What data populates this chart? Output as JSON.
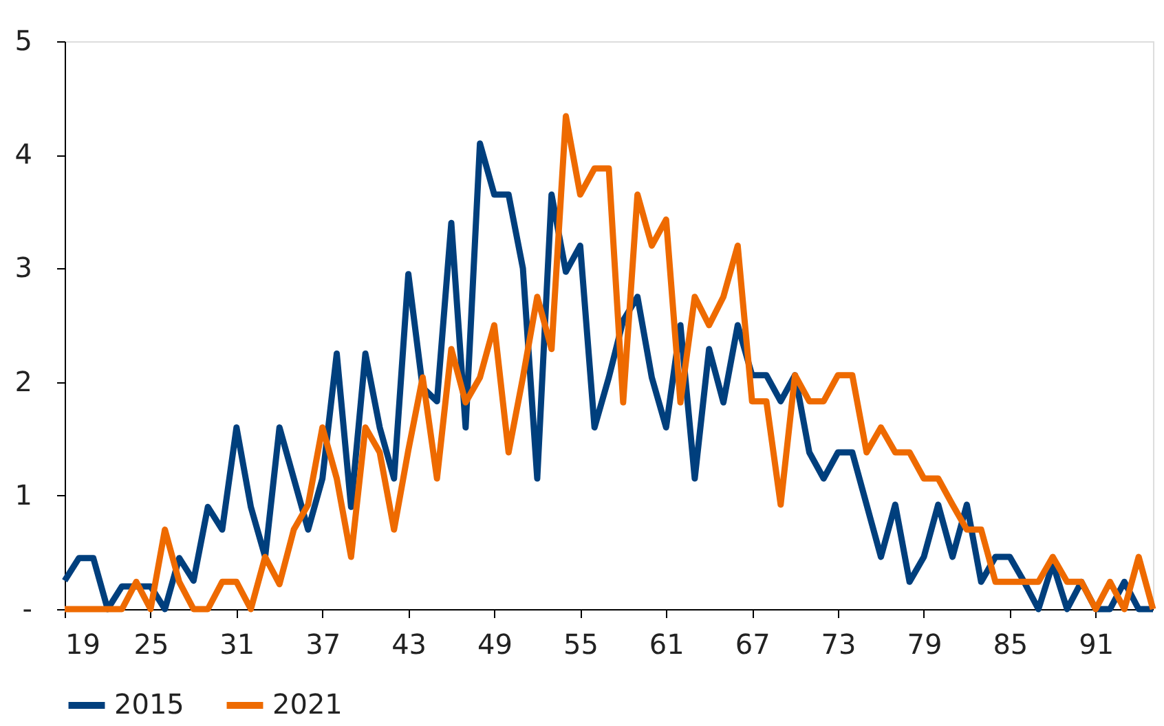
{
  "chart_data": {
    "type": "line",
    "x": [
      19,
      20,
      21,
      22,
      23,
      24,
      25,
      26,
      27,
      28,
      29,
      30,
      31,
      32,
      33,
      34,
      35,
      36,
      37,
      38,
      39,
      40,
      41,
      42,
      43,
      44,
      45,
      46,
      47,
      48,
      49,
      50,
      51,
      52,
      53,
      54,
      55,
      56,
      57,
      58,
      59,
      60,
      61,
      62,
      63,
      64,
      65,
      66,
      67,
      68,
      69,
      70,
      71,
      72,
      73,
      74,
      75,
      76,
      77,
      78,
      79,
      80,
      81,
      82,
      83,
      84,
      85,
      86,
      87,
      88,
      89,
      90,
      91,
      92,
      93,
      94,
      95
    ],
    "series": [
      {
        "name": "2015",
        "color": "#003f7d",
        "values": [
          0.25,
          0.45,
          0.45,
          0,
          0.2,
          0.2,
          0.2,
          0,
          0.45,
          0.25,
          0.9,
          0.7,
          1.6,
          0.9,
          0.46,
          1.6,
          1.15,
          0.7,
          1.15,
          2.25,
          0.9,
          2.25,
          1.6,
          1.15,
          2.95,
          1.95,
          1.83,
          3.4,
          1.6,
          4.1,
          3.65,
          3.65,
          3.0,
          1.15,
          3.65,
          2.97,
          3.2,
          1.6,
          2.04,
          2.54,
          2.75,
          2.04,
          1.6,
          2.5,
          1.15,
          2.29,
          1.82,
          2.5,
          2.06,
          2.06,
          1.83,
          2.06,
          1.38,
          1.15,
          1.38,
          1.38,
          0.92,
          0.46,
          0.92,
          0.24,
          0.46,
          0.92,
          0.46,
          0.92,
          0.24,
          0.46,
          0.46,
          0.24,
          0,
          0.4,
          0,
          0.24,
          0,
          0,
          0.24,
          0,
          0
        ]
      },
      {
        "name": "2021",
        "color": "#ee6a00",
        "values": [
          0,
          0,
          0,
          0,
          0,
          0.24,
          0,
          0.7,
          0.24,
          0,
          0,
          0.24,
          0.24,
          0,
          0.46,
          0.22,
          0.7,
          0.92,
          1.6,
          1.15,
          0.46,
          1.6,
          1.38,
          0.7,
          1.4,
          2.04,
          1.15,
          2.29,
          1.82,
          2.04,
          2.5,
          1.38,
          2.04,
          2.75,
          2.29,
          4.34,
          3.65,
          3.88,
          3.88,
          1.82,
          3.65,
          3.2,
          3.43,
          1.82,
          2.75,
          2.5,
          2.75,
          3.2,
          1.83,
          1.83,
          0.92,
          2.06,
          1.83,
          1.83,
          2.06,
          2.06,
          1.38,
          1.6,
          1.38,
          1.38,
          1.15,
          1.15,
          0.92,
          0.7,
          0.7,
          0.24,
          0.24,
          0.24,
          0.24,
          0.46,
          0.24,
          0.24,
          0,
          0.24,
          0,
          0.46,
          0
        ]
      }
    ],
    "xlim": [
      19,
      95
    ],
    "xticks": [
      19,
      25,
      31,
      37,
      43,
      49,
      55,
      61,
      67,
      73,
      79,
      85,
      91
    ],
    "ylim": [
      0,
      5
    ],
    "yticks": [
      {
        "value": 0,
        "label": "-"
      },
      1,
      2,
      3,
      4,
      5
    ],
    "grid": false,
    "legend": "bottom",
    "marker": "none",
    "line_style": "solid"
  }
}
